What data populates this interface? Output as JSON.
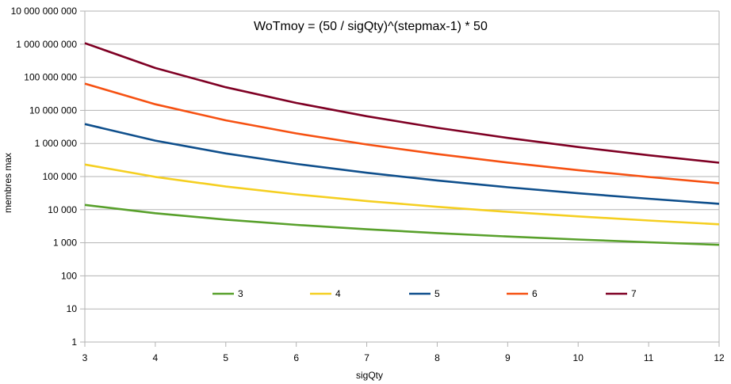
{
  "chart_data": {
    "type": "line",
    "title": "WoTmoy =  (50 / sigQty)^(stepmax-1)  * 50",
    "xlabel": "sigQty",
    "ylabel": "membres max",
    "x": [
      3,
      4,
      5,
      6,
      7,
      8,
      9,
      10,
      11,
      12
    ],
    "xlim": [
      3,
      12
    ],
    "yscale": "log",
    "ylim": [
      1,
      10000000000
    ],
    "ytick_values": [
      1,
      10,
      100,
      1000,
      10000,
      100000,
      1000000,
      10000000,
      100000000,
      1000000000,
      10000000000
    ],
    "ytick_labels": [
      "1",
      "10",
      "100",
      "1 000",
      "10 000",
      "100 000",
      "1 000 000",
      "10 000 000",
      "100 000 000",
      "1 000 000 000",
      "10 000 000 000"
    ],
    "xtick_labels": [
      "3",
      "4",
      "5",
      "6",
      "7",
      "8",
      "9",
      "10",
      "11",
      "12"
    ],
    "grid": "horizontal",
    "legend_position": "inside-bottom",
    "series": [
      {
        "name": "3",
        "color": "#58a02b",
        "values": [
          13889,
          7813,
          5000,
          3472,
          2551,
          1953,
          1543,
          1250,
          1033,
          868
        ]
      },
      {
        "name": "4",
        "color": "#f5cf21",
        "values": [
          231481,
          97656,
          50000,
          28935,
          18222,
          12207,
          8573,
          6250,
          4696,
          3617
        ]
      },
      {
        "name": "5",
        "color": "#0f4f8c",
        "values": [
          3858025,
          1220703,
          500000,
          241127,
          130154,
          76294,
          47630,
          31250,
          21344,
          15070
        ]
      },
      {
        "name": "6",
        "color": "#f65112",
        "values": [
          64300412,
          15258789,
          5000000,
          2009388,
          929672,
          476837,
          264609,
          156250,
          97020,
          62793
        ]
      },
      {
        "name": "7",
        "color": "#7f0024",
        "values": [
          1071673525,
          190734863,
          50000000,
          16744898,
          6640514,
          2980232,
          1470051,
          781250,
          441000,
          261638
        ]
      }
    ]
  }
}
